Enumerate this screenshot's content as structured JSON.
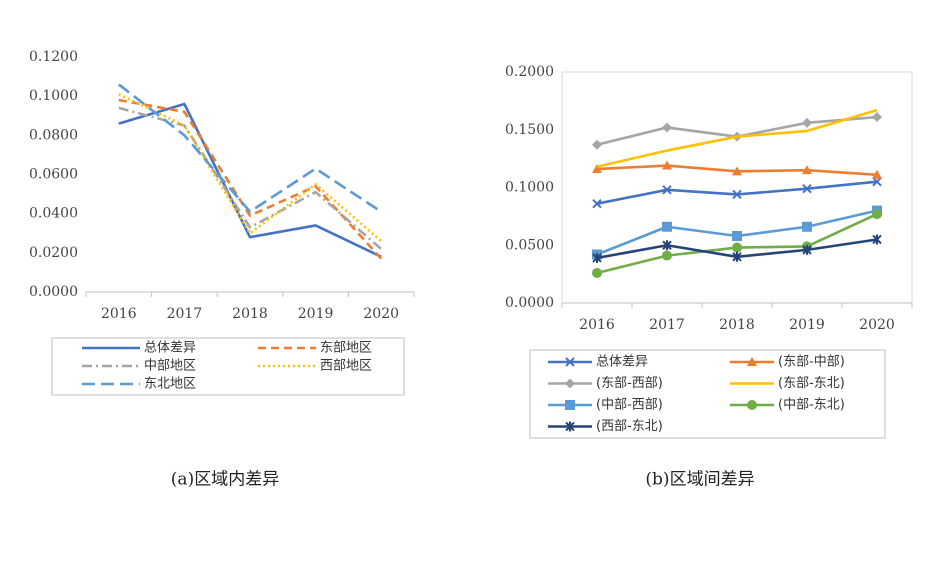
{
  "chart_data": [
    {
      "type": "line",
      "caption": "(a)区域内差异",
      "x": [
        "2016",
        "2017",
        "2018",
        "2019",
        "2020"
      ],
      "yticks": [
        "0.0000",
        "0.0200",
        "0.0400",
        "0.0600",
        "0.0800",
        "0.1000",
        "0.1200"
      ],
      "ylim": [
        0,
        0.12
      ],
      "grid": false,
      "legend_position": "bottom",
      "series": [
        {
          "name": "总体差异",
          "values": [
            0.086,
            0.096,
            0.028,
            0.034,
            0.018
          ],
          "color": "#4472C4",
          "dash": "solid"
        },
        {
          "name": "东部地区",
          "values": [
            0.098,
            0.092,
            0.039,
            0.054,
            0.017
          ],
          "color": "#ED7D31",
          "dash": "dash"
        },
        {
          "name": "中部地区",
          "values": [
            0.094,
            0.085,
            0.033,
            0.051,
            0.022
          ],
          "color": "#A5A5A5",
          "dash": "dashdot"
        },
        {
          "name": "西部地区",
          "values": [
            0.101,
            0.085,
            0.03,
            0.055,
            0.026
          ],
          "color": "#FFC000",
          "dash": "dot"
        },
        {
          "name": "东北地区",
          "values": [
            0.106,
            0.08,
            0.041,
            0.063,
            0.041
          ],
          "color": "#5B9BD5",
          "dash": "longdash"
        }
      ]
    },
    {
      "type": "line",
      "caption": "(b)区域间差异",
      "x": [
        "2016",
        "2017",
        "2018",
        "2019",
        "2020"
      ],
      "yticks": [
        "0.0000",
        "0.0500",
        "0.1000",
        "0.1500",
        "0.2000"
      ],
      "ylim": [
        0,
        0.2
      ],
      "grid": false,
      "legend_position": "bottom",
      "series": [
        {
          "name": "总体差异",
          "values": [
            0.086,
            0.098,
            0.094,
            0.099,
            0.105
          ],
          "color": "#4472C4",
          "marker": "x"
        },
        {
          "name": "(东部-中部)",
          "values": [
            0.116,
            0.119,
            0.114,
            0.115,
            0.111
          ],
          "color": "#ED7D31",
          "marker": "triangle"
        },
        {
          "name": "(东部-西部)",
          "values": [
            0.137,
            0.152,
            0.144,
            0.156,
            0.161
          ],
          "color": "#A5A5A5",
          "marker": "diamond"
        },
        {
          "name": "(东部-东北)",
          "values": [
            0.118,
            0.132,
            0.144,
            0.149,
            0.167
          ],
          "color": "#FFC000",
          "marker": "none"
        },
        {
          "name": "(中部-西部)",
          "values": [
            0.042,
            0.066,
            0.058,
            0.066,
            0.08
          ],
          "color": "#5B9BD5",
          "marker": "square"
        },
        {
          "name": "(中部-东北)",
          "values": [
            0.026,
            0.041,
            0.048,
            0.049,
            0.077
          ],
          "color": "#70AD47",
          "marker": "circle"
        },
        {
          "name": "(西部-东北)",
          "values": [
            0.039,
            0.05,
            0.04,
            0.046,
            0.055
          ],
          "color": "#264478",
          "marker": "star"
        }
      ]
    }
  ]
}
